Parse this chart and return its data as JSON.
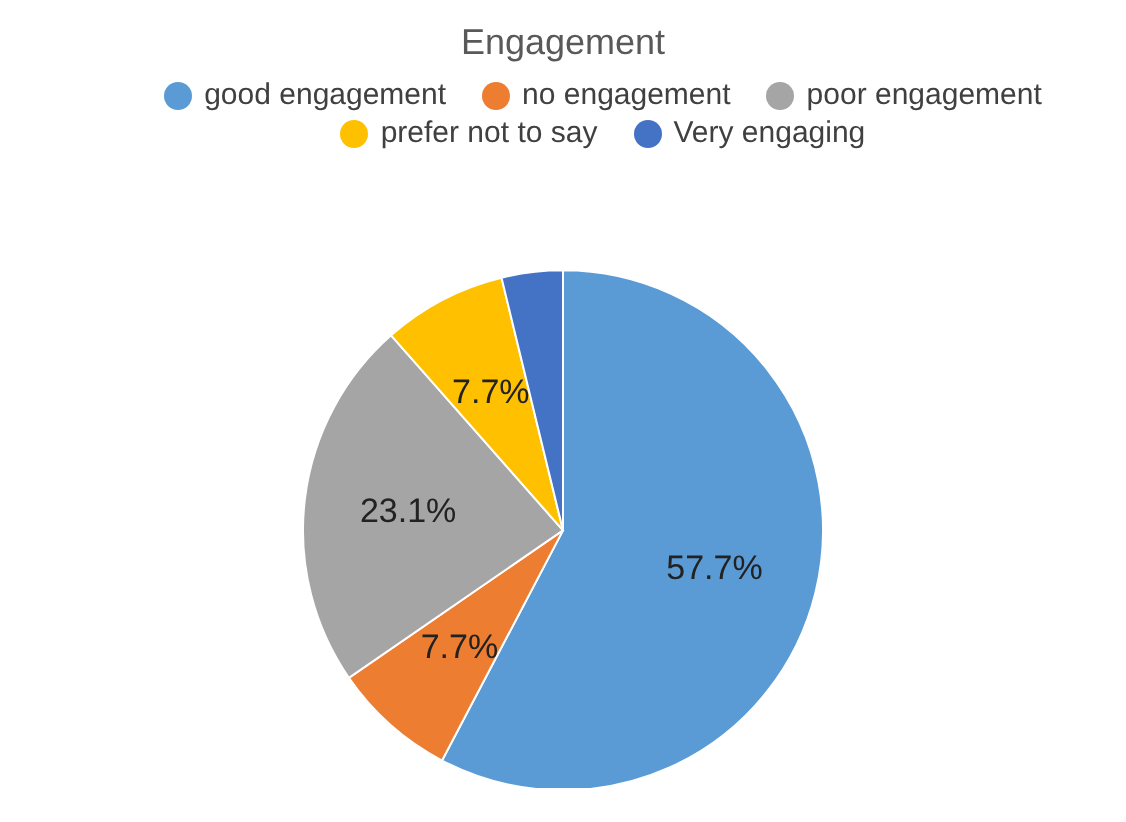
{
  "chart_data": {
    "type": "pie",
    "title": "Engagement",
    "categories": [
      "good engagement",
      "no engagement",
      "poor engagement",
      "prefer not to say",
      "Very engaging"
    ],
    "values": [
      57.7,
      7.7,
      23.1,
      7.7,
      3.8
    ],
    "colors": [
      "#5b9bd5",
      "#ed7d31",
      "#a5a5a5",
      "#ffc000",
      "#4472c4"
    ],
    "value_labels": [
      "57.7%",
      "7.7%",
      "23.1%",
      "7.7%",
      null
    ],
    "legend": "top"
  }
}
